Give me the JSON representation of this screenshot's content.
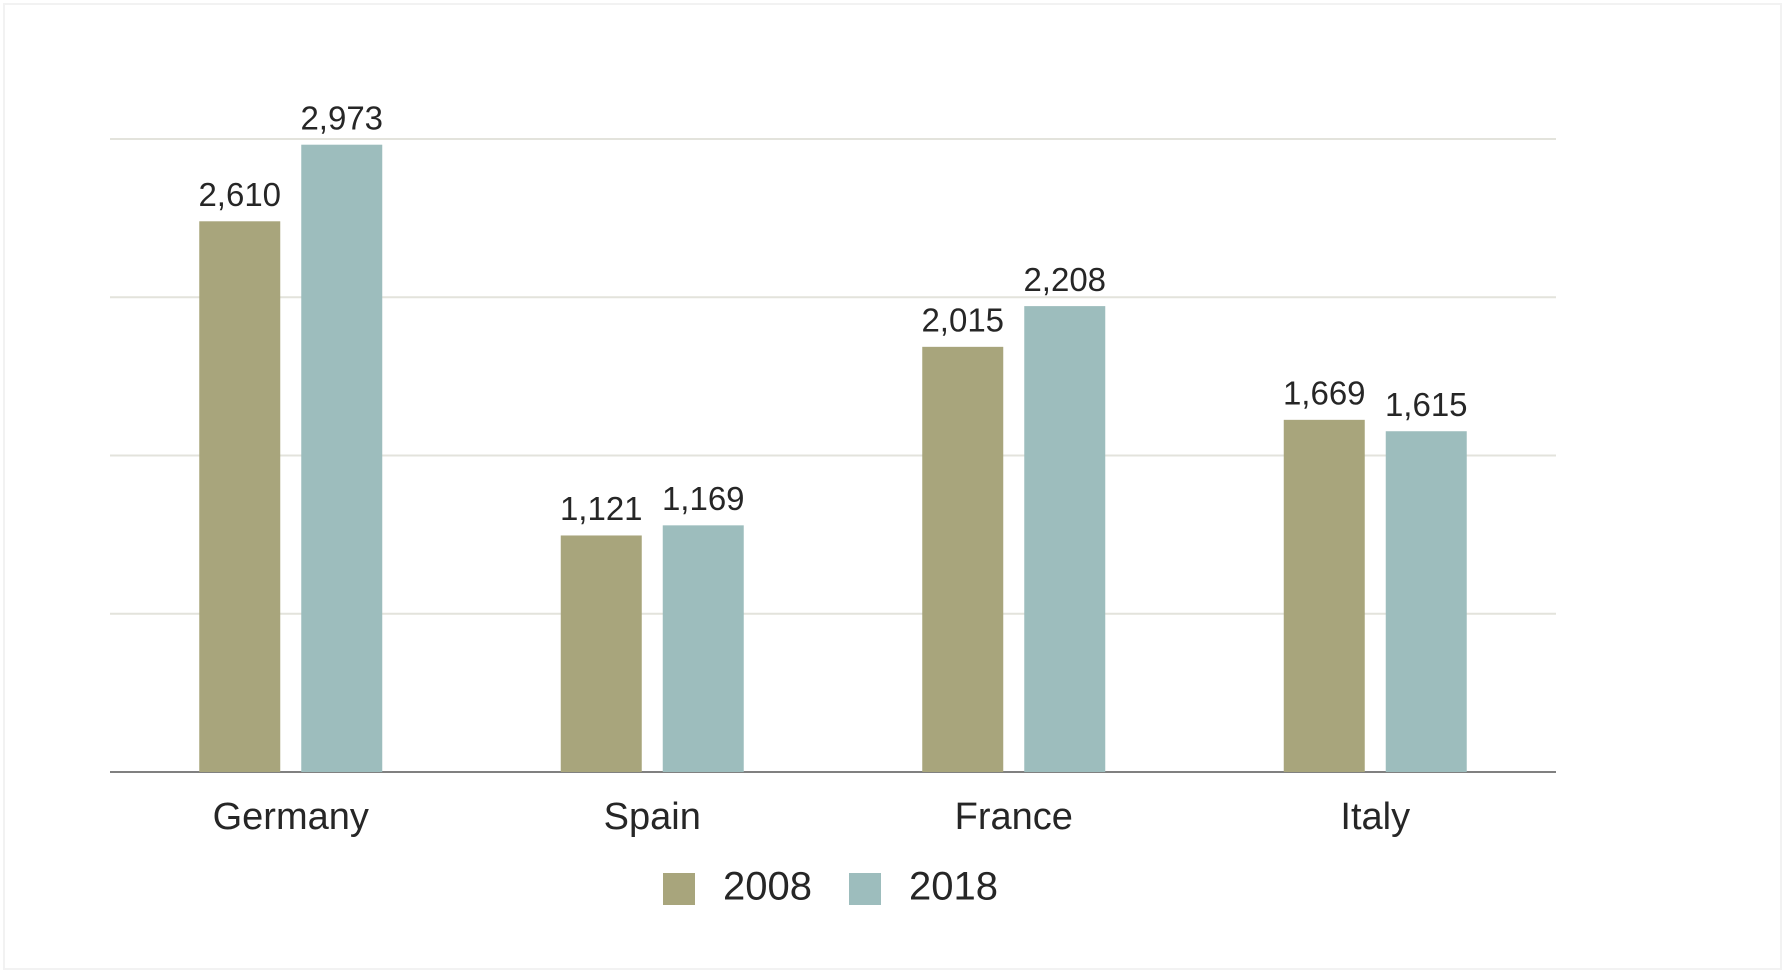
{
  "chart_data": {
    "type": "bar",
    "categories": [
      "Germany",
      "Spain",
      "France",
      "Italy"
    ],
    "series": [
      {
        "name": "2008",
        "color": "#a8a57c",
        "values": [
          2610,
          1121,
          2015,
          1669
        ],
        "value_labels": [
          "2,610",
          "1,121",
          "2,015",
          "1,669"
        ]
      },
      {
        "name": "2018",
        "color": "#9dbdbd",
        "values": [
          2973,
          1169,
          2208,
          1615
        ],
        "value_labels": [
          "2,973",
          "1,169",
          "2,208",
          "1,615"
        ]
      }
    ],
    "ylim": [
      0,
      3000
    ],
    "yticks": [
      0,
      750,
      1500,
      2250,
      3000
    ],
    "grid": true,
    "legend": "bottom"
  }
}
